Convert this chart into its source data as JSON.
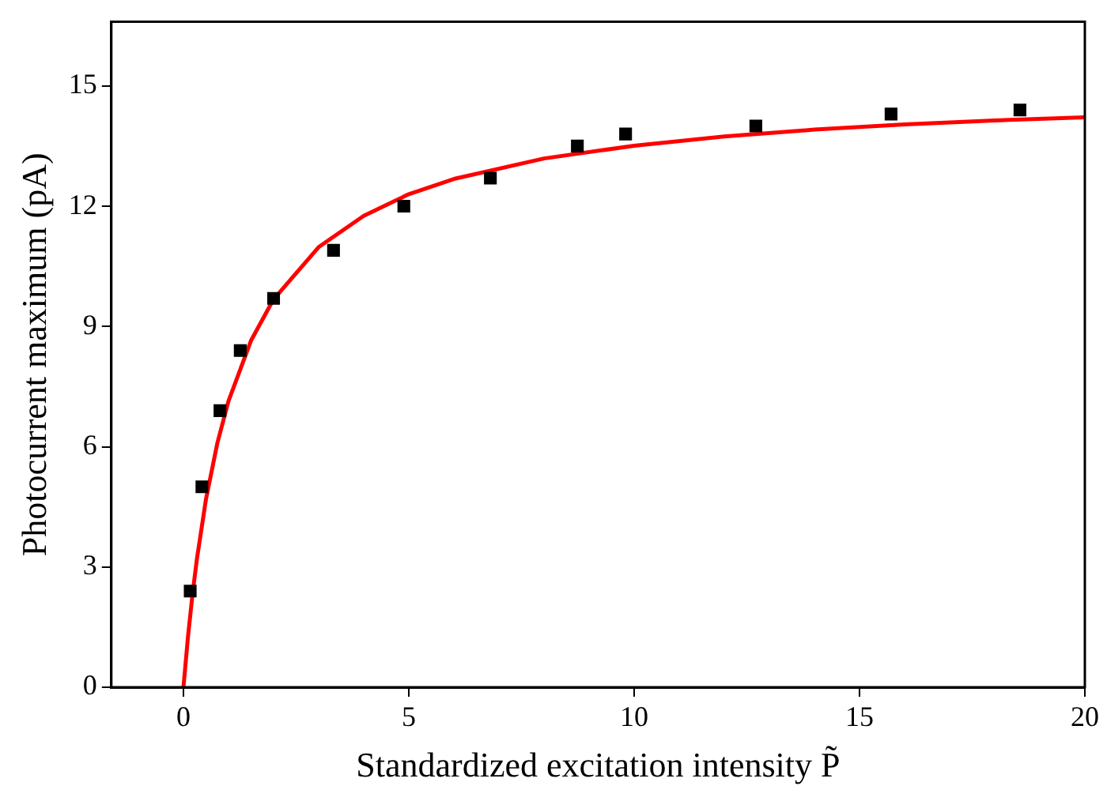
{
  "chart_data": {
    "type": "scatter",
    "xlabel": "Standardized excitation intensity P̃",
    "ylabel": "Photocurrent maximum (pA)",
    "xlim": [
      -1.6,
      20
    ],
    "xticks": [
      0,
      5,
      10,
      15,
      20
    ],
    "ylim": [
      0,
      16.6
    ],
    "yticks": [
      0,
      3,
      6,
      9,
      12,
      15
    ],
    "grid": false,
    "legend": false,
    "marker": "square",
    "series": [
      {
        "color": "#000000",
        "x": [
          0.15,
          0.41,
          0.81,
          1.26,
          2.0,
          3.33,
          4.89,
          6.81,
          8.74,
          9.81,
          12.7,
          15.7,
          18.56
        ],
        "values": [
          2.4,
          5.0,
          6.9,
          8.4,
          9.7,
          10.9,
          12.0,
          12.7,
          13.5,
          13.8,
          14.0,
          14.3,
          14.4
        ]
      },
      {
        "type": "line",
        "color": "#ff0000",
        "marker": "none",
        "x": [
          0,
          0.1,
          0.2,
          0.3,
          0.5,
          0.75,
          1,
          1.5,
          2,
          3,
          4,
          5,
          6,
          8,
          10,
          12,
          14,
          16,
          18,
          20
        ],
        "values": [
          0,
          1.25,
          2.31,
          3.21,
          4.69,
          6.08,
          7.14,
          8.65,
          9.68,
          10.98,
          11.76,
          12.3,
          12.68,
          13.19,
          13.51,
          13.74,
          13.91,
          14.04,
          14.14,
          14.22
        ]
      }
    ]
  }
}
